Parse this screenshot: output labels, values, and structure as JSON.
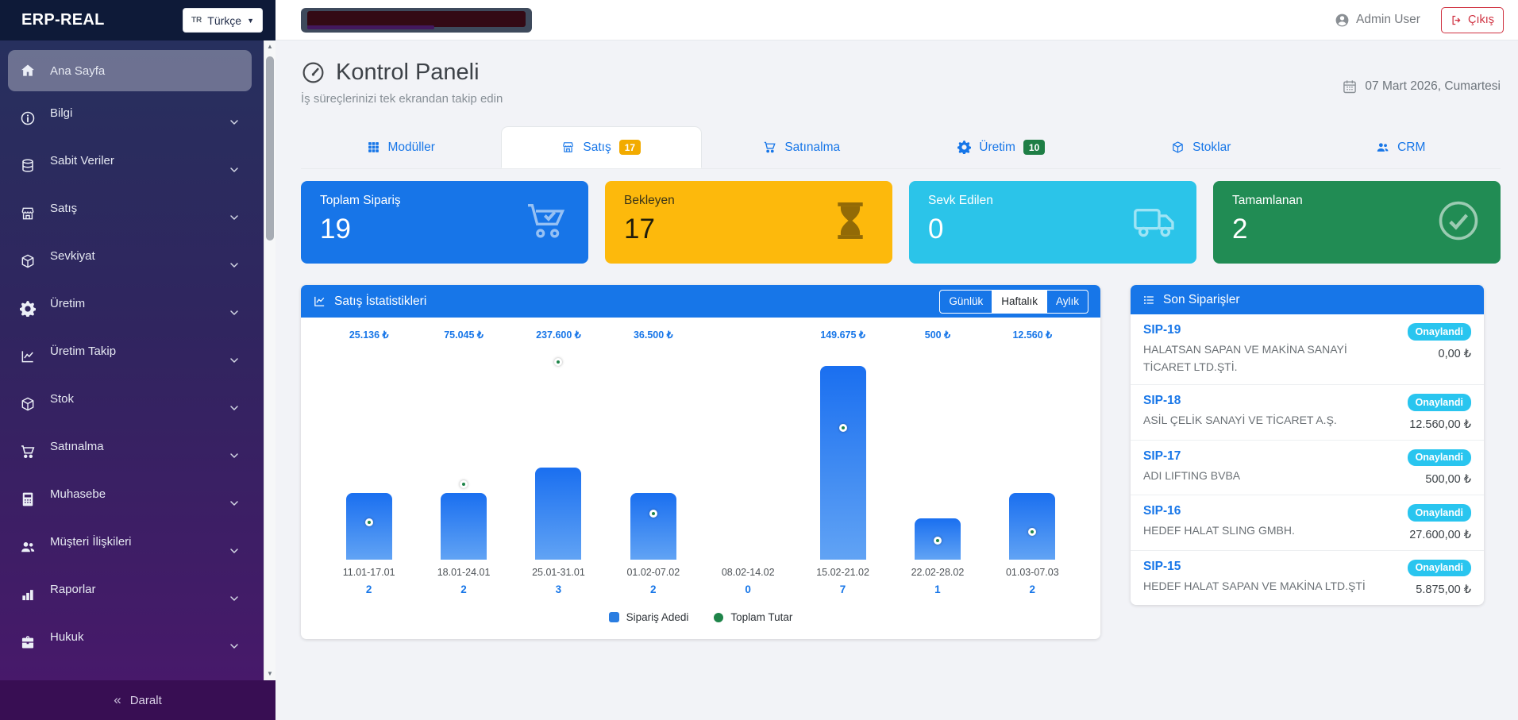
{
  "app": {
    "brand": "ERP-REAL",
    "language": {
      "code": "TR",
      "label": "Türkçe"
    }
  },
  "topbar": {
    "user": "Admin User",
    "logout_label": "Çıkış"
  },
  "sidebar": {
    "items": [
      {
        "label": "Ana Sayfa",
        "icon": "home-icon",
        "active": true,
        "expandable": false
      },
      {
        "label": "Bilgi",
        "icon": "info-icon",
        "active": false,
        "expandable": true
      },
      {
        "label": "Sabit Veriler",
        "icon": "database-icon",
        "active": false,
        "expandable": true
      },
      {
        "label": "Satış",
        "icon": "shop-icon",
        "active": false,
        "expandable": true
      },
      {
        "label": "Sevkiyat",
        "icon": "package-icon",
        "active": false,
        "expandable": true
      },
      {
        "label": "Üretim",
        "icon": "gear-icon",
        "active": false,
        "expandable": true
      },
      {
        "label": "Üretim Takip",
        "icon": "chart-line-icon",
        "active": false,
        "expandable": true
      },
      {
        "label": "Stok",
        "icon": "package-icon",
        "active": false,
        "expandable": true
      },
      {
        "label": "Satınalma",
        "icon": "cart-icon",
        "active": false,
        "expandable": true
      },
      {
        "label": "Muhasebe",
        "icon": "calculator-icon",
        "active": false,
        "expandable": true
      },
      {
        "label": "Müşteri İlişkileri",
        "icon": "users-icon",
        "active": false,
        "expandable": true
      },
      {
        "label": "Raporlar",
        "icon": "bar-chart-icon",
        "active": false,
        "expandable": true
      },
      {
        "label": "Hukuk",
        "icon": "briefcase-icon",
        "active": false,
        "expandable": true
      }
    ],
    "collapse_label": "Daralt"
  },
  "page": {
    "title": "Kontrol Paneli",
    "subtitle": "İş süreçlerinizi tek ekrandan takip edin",
    "date": "07 Mart 2026, Cumartesi"
  },
  "tabs": [
    {
      "label": "Modüller",
      "icon": "grid-icon",
      "active": false
    },
    {
      "label": "Satış",
      "icon": "shop-icon",
      "badge": "17",
      "badge_color": "#f2ab00",
      "active": true
    },
    {
      "label": "Satınalma",
      "icon": "cart-icon",
      "active": false
    },
    {
      "label": "Üretim",
      "icon": "gear-icon",
      "badge": "10",
      "badge_color": "#1e7e45",
      "active": false
    },
    {
      "label": "Stoklar",
      "icon": "package-icon",
      "active": false
    },
    {
      "label": "CRM",
      "icon": "users-icon",
      "active": false
    }
  ],
  "stat_cards": [
    {
      "label": "Toplam Sipariş",
      "value": "19",
      "color": "#1775e8",
      "icon": "cart-check-icon",
      "text": "light"
    },
    {
      "label": "Bekleyen",
      "value": "17",
      "color": "#fdb90c",
      "icon": "hourglass-icon",
      "text": "dark"
    },
    {
      "label": "Sevk Edilen",
      "value": "0",
      "color": "#2bc4e9",
      "icon": "truck-icon",
      "text": "light"
    },
    {
      "label": "Tamamlanan",
      "value": "2",
      "color": "#218c54",
      "icon": "check-circle-icon",
      "text": "light"
    }
  ],
  "chart_panel": {
    "title": "Satış İstatistikleri",
    "range_buttons": [
      {
        "label": "Günlük",
        "active": false
      },
      {
        "label": "Haftalık",
        "active": true
      },
      {
        "label": "Aylık",
        "active": false
      }
    ]
  },
  "chart_data": {
    "type": "bar",
    "title": "Satış İstatistikleri",
    "categories": [
      "11.01-17.01",
      "18.01-24.01",
      "25.01-31.01",
      "01.02-07.02",
      "08.02-14.02",
      "15.02-21.02",
      "22.02-28.02",
      "01.03-07.03"
    ],
    "series": [
      {
        "name": "Sipariş Adedi",
        "type": "bar",
        "color": "#2a7de1",
        "values": [
          2,
          2,
          3,
          2,
          0,
          7,
          1,
          2
        ]
      },
      {
        "name": "Toplam Tutar",
        "type": "scatter",
        "color": "#1e8449",
        "values": [
          25136,
          75045,
          237600,
          36500,
          0,
          149675,
          500,
          12560
        ],
        "value_labels": [
          "25.136 ₺",
          "75.045 ₺",
          "237.600 ₺",
          "36.500 ₺",
          "",
          "149.675 ₺",
          "500 ₺",
          "12.560 ₺"
        ]
      }
    ],
    "ylabel": "",
    "xlabel": "",
    "grid": false,
    "legend_position": "bottom"
  },
  "orders_panel": {
    "title": "Son Siparişler",
    "status_color": "#29c5ef",
    "orders": [
      {
        "id": "SIP-19",
        "customer": "HALATSAN SAPAN VE MAKİNA SANAYİ TİCARET LTD.ŞTİ.",
        "status": "Onaylandi",
        "amount": "0,00 ₺"
      },
      {
        "id": "SIP-18",
        "customer": "ASİL ÇELİK SANAYİ VE TİCARET A.Ş.",
        "status": "Onaylandi",
        "amount": "12.560,00 ₺"
      },
      {
        "id": "SIP-17",
        "customer": "ADI LIFTING BVBA",
        "status": "Onaylandi",
        "amount": "500,00 ₺"
      },
      {
        "id": "SIP-16",
        "customer": "HEDEF HALAT SLING GMBH.",
        "status": "Onaylandi",
        "amount": "27.600,00 ₺"
      },
      {
        "id": "SIP-15",
        "customer": "HEDEF HALAT SAPAN VE MAKİNA LTD.ŞTİ",
        "status": "Onaylandi",
        "amount": "5.875,00 ₺"
      }
    ]
  }
}
